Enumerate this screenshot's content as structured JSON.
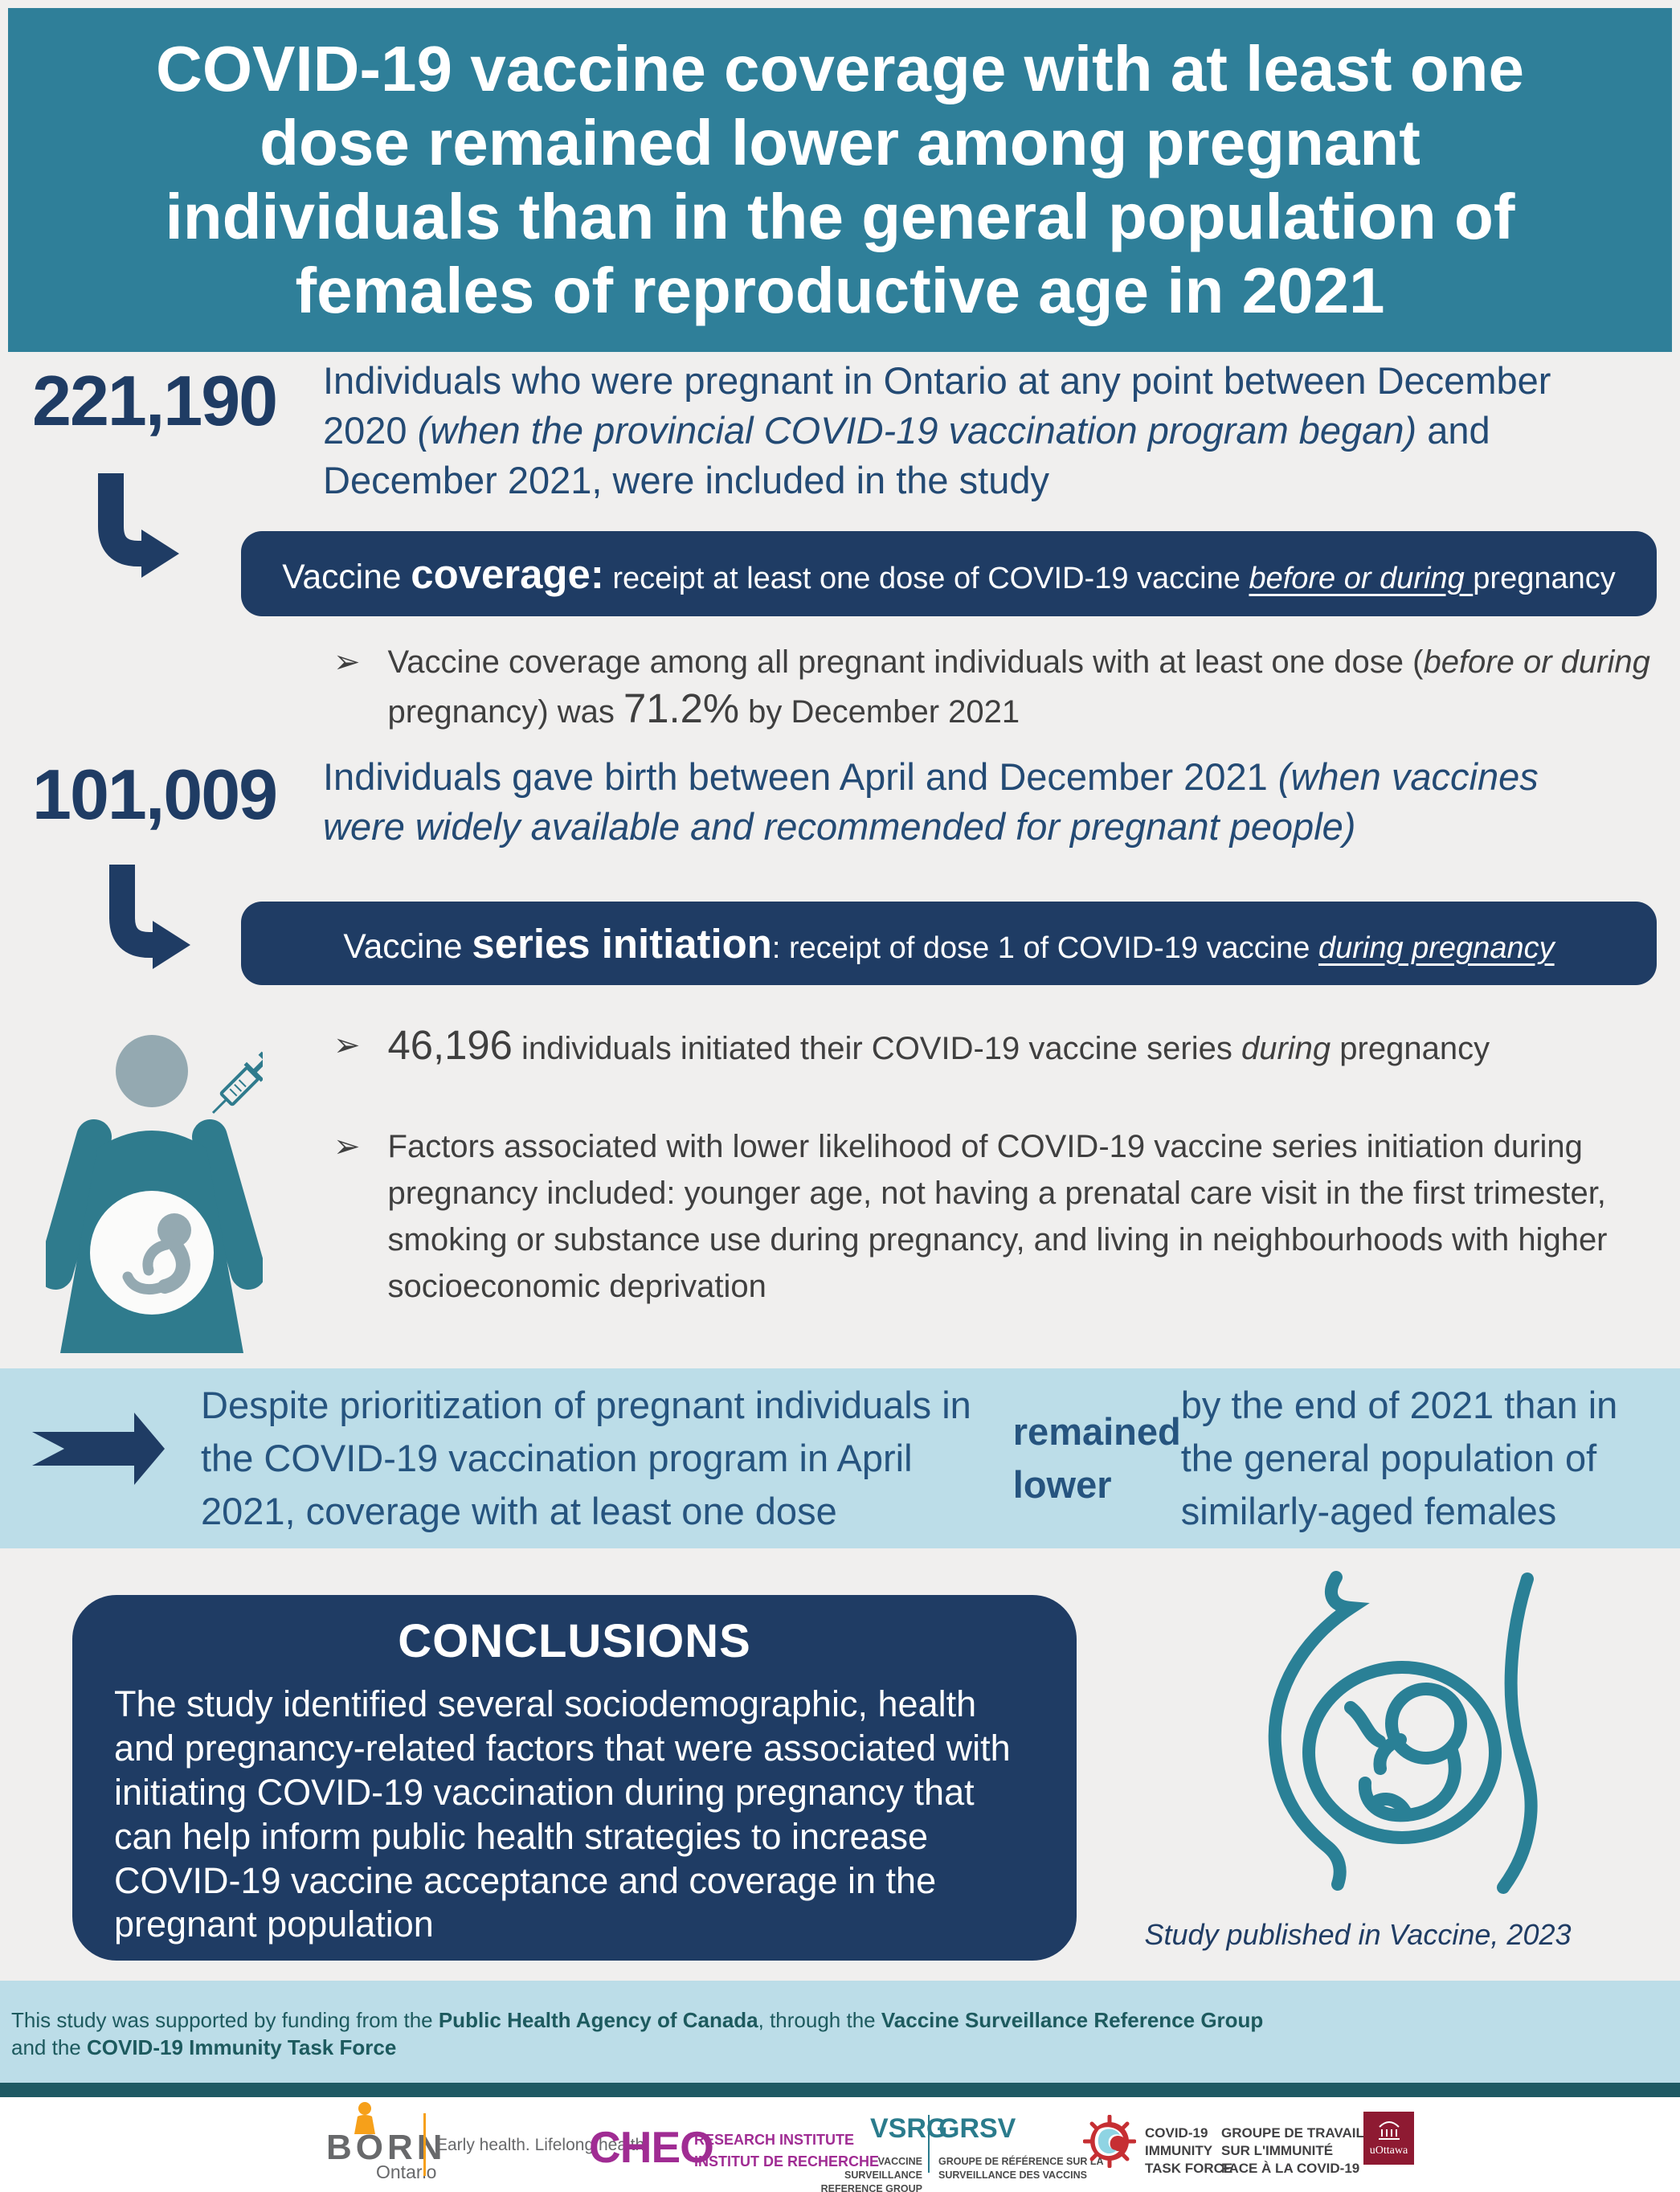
{
  "colors": {
    "header_teal": "#2f7f99",
    "navy": "#1f3c64",
    "light_blue": "#bcdde8",
    "icon_teal": "#2f7b8d",
    "figure_gray": "#94a9b1",
    "illustration_teal": "#2a8096",
    "body_gray": "#3f3f3f",
    "stat_blue": "#234a74",
    "callout_blue": "#26547f",
    "funding_text": "#1d5a5e",
    "footer_bar": "#1f5a64",
    "page_bg": "#f0efee",
    "born_orange": "#f6a01a",
    "born_gray": "#68696b",
    "cheo_purple": "#a02c93",
    "vsrg_teal": "#2a7b8c",
    "citf_red": "#c62f33",
    "citf_blue": "#8fd4e3",
    "uottawa_garnet": "#8e1a32"
  },
  "header": {
    "title": "COVID-19 vaccine coverage with at least one\ndose remained lower among pregnant\nindividuals than in the general population of\nfemales of reproductive age in 2021"
  },
  "stat1": {
    "number": "221,190",
    "segments": [
      {
        "t": "Individuals who were pregnant in Ontario at any point between December 2020 "
      },
      {
        "t": "(when the provincial COVID-19 vaccination program began)",
        "c": "i"
      },
      {
        "t": " and December 2021, were included in the study"
      }
    ]
  },
  "banner1": {
    "segments": [
      {
        "t": "Vaccine ",
        "c": "md"
      },
      {
        "t": "coverage:",
        "c": "blg"
      },
      {
        "t": " receipt at least one dose of COVID-19 vaccine "
      },
      {
        "t": "before or during ",
        "c": "iu"
      },
      {
        "t": "pregnancy"
      }
    ]
  },
  "bullet1": {
    "marker": "➢",
    "segments": [
      {
        "t": "Vaccine coverage among all pregnant individuals with at least one dose ("
      },
      {
        "t": "before or during",
        "c": "i"
      },
      {
        "t": " pregnancy) was "
      },
      {
        "t": "71.2%",
        "c": "lg"
      },
      {
        "t": " by December 2021"
      }
    ]
  },
  "stat2": {
    "number": "101,009",
    "segments": [
      {
        "t": "Individuals gave birth between April and December 2021 "
      },
      {
        "t": "(when vaccines were widely available and recommended for pregnant people)",
        "c": "i"
      }
    ]
  },
  "banner2": {
    "segments": [
      {
        "t": "Vaccine ",
        "c": "md"
      },
      {
        "t": "series initiation",
        "c": "blg"
      },
      {
        "t": ": receipt of dose 1 of COVID-19 vaccine "
      },
      {
        "t": "during pregnancy",
        "c": "iu"
      }
    ]
  },
  "bullet2": {
    "marker": "➢",
    "segments": [
      {
        "t": "46,196",
        "c": "lg"
      },
      {
        "t": " individuals initiated their COVID-19 vaccine series "
      },
      {
        "t": "during",
        "c": "i"
      },
      {
        "t": " pregnancy"
      }
    ]
  },
  "bullet3": {
    "marker": "➢",
    "segments": [
      {
        "t": "Factors associated with lower likelihood of COVID-19 vaccine series initiation during pregnancy included: younger age, not having a prenatal care visit in the first trimester, smoking or substance use during pregnancy, and living in neighbourhoods with higher socioeconomic deprivation"
      }
    ]
  },
  "callout": {
    "segments": [
      {
        "t": "Despite prioritization of pregnant individuals in the COVID-19 vaccination program in April 2021, coverage with at least one dose "
      },
      {
        "t": "remained lower",
        "c": "b"
      },
      {
        "t": " by the end of 2021 than in the general population of similarly-aged females"
      }
    ]
  },
  "conclusions": {
    "title": "CONCLUSIONS",
    "body": "The study identified several sociodemographic, health and pregnancy-related factors that were associated with initiating COVID-19 vaccination during pregnancy that can help inform public health strategies to increase COVID-19 vaccine acceptance and coverage in the pregnant population"
  },
  "study_note": "Study published in Vaccine, 2023",
  "funding": {
    "segments": [
      {
        "t": "This study was supported by funding from the "
      },
      {
        "t": "Public Health Agency of Canada",
        "c": "b"
      },
      {
        "t": ", through the "
      },
      {
        "t": "Vaccine Surveillance Reference Group",
        "c": "b"
      },
      {
        "t": "\nand the "
      },
      {
        "t": "COVID-19 Immunity Task Force",
        "c": "b"
      }
    ]
  },
  "logos": {
    "born": {
      "name": "BORN",
      "region": "Ontario",
      "tagline": "Early health. Lifelong health."
    },
    "cheo": {
      "name": "CHEO",
      "sub": "RESEARCH INSTITUTE\nINSTITUT DE RECHERCHE"
    },
    "vsrg": {
      "abbr_en": "VSRG",
      "abbr_fr": "GRSV",
      "sub_en": "VACCINE SURVEILLANCE\nREFERENCE GROUP",
      "sub_fr": "GROUPE DE RÉFÉRENCE SUR LA\nSURVEILLANCE DES VACCINS"
    },
    "citf": {
      "text_en": "COVID-19\nIMMUNITY\nTASK FORCE",
      "text_fr": "GROUPE DE TRAVAIL\nSUR L'IMMUNITÉ\nFACE À LA COVID-19"
    },
    "uottawa": {
      "name": "uOttawa"
    }
  }
}
